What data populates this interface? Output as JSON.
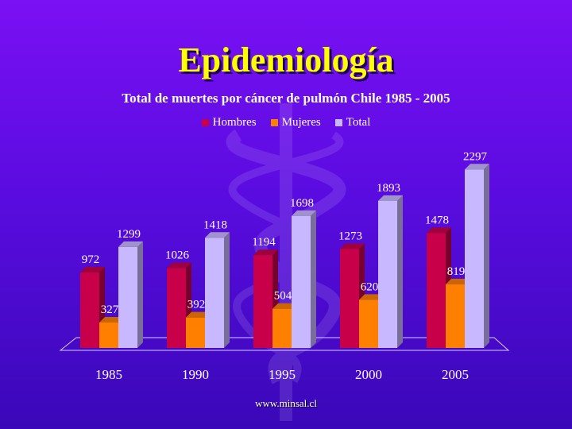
{
  "slide": {
    "title": "Epidemiología",
    "footer": "www.minsal.cl"
  },
  "colors": {
    "Hombres": "#c8004a",
    "Mujeres": "#ff8000",
    "Total": "#c8b8ff"
  },
  "chart_data": {
    "type": "bar",
    "title": "Total de muertes por cáncer de pulmón Chile 1985 - 2005",
    "xlabel": "",
    "ylabel": "",
    "categories": [
      "1985",
      "1990",
      "1995",
      "2000",
      "2005"
    ],
    "series": [
      {
        "name": "Hombres",
        "values": [
          972,
          1026,
          1194,
          1273,
          1478
        ]
      },
      {
        "name": "Mujeres",
        "values": [
          327,
          392,
          504,
          620,
          819
        ]
      },
      {
        "name": "Total",
        "values": [
          1299,
          1418,
          1698,
          1893,
          2297
        ]
      }
    ],
    "ylim": [
      0,
      2300
    ],
    "grid": false,
    "legend": "top-center",
    "style": "3d-clustered-column"
  }
}
